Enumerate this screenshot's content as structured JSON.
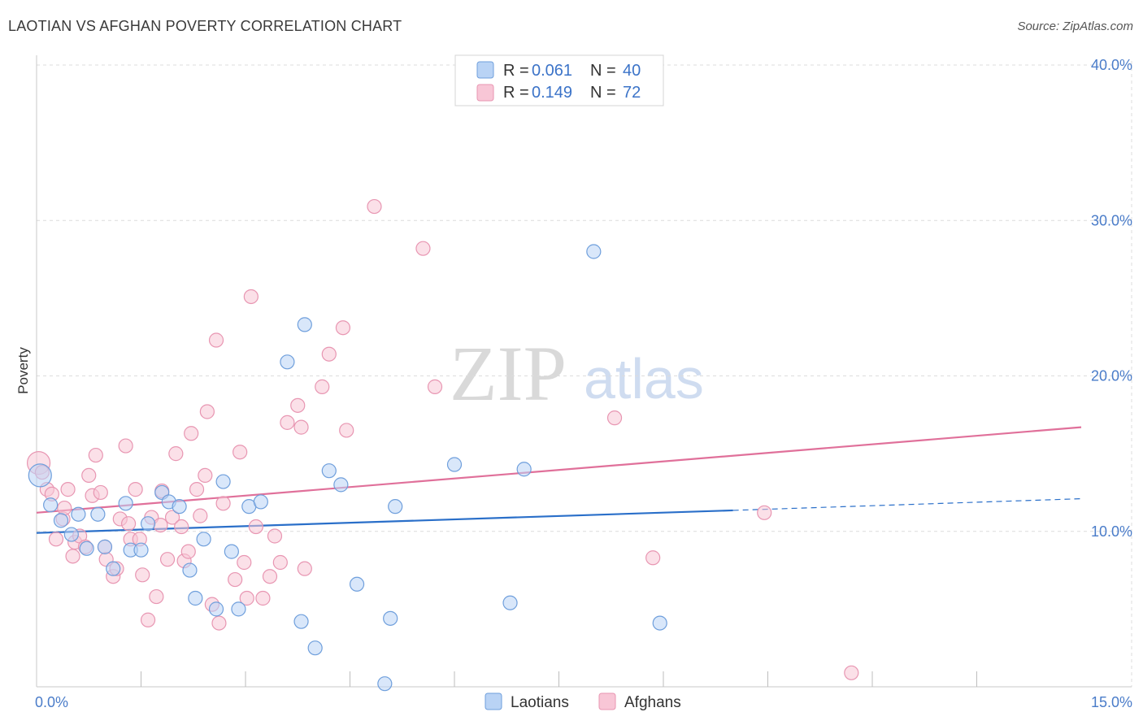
{
  "title": "LAOTIAN VS AFGHAN POVERTY CORRELATION CHART",
  "source": "Source: ZipAtlas.com",
  "watermark": {
    "zip": "ZIP",
    "atlas": "atlas"
  },
  "colors": {
    "laotian_fill": "#b9d3f5",
    "laotian_stroke": "#6f9fdc",
    "laotian_line": "#2a6fc9",
    "afghan_fill": "#f8c6d6",
    "afghan_stroke": "#e896b2",
    "afghan_line": "#e0709a",
    "tick_label": "#4a7cc9",
    "grid": "#dcdcdc"
  },
  "legend": {
    "rows": [
      {
        "r_label": "R =",
        "r_value": "0.061",
        "n_label": "N =",
        "n_value": "40"
      },
      {
        "r_label": "R =",
        "r_value": "0.149",
        "n_label": "N =",
        "n_value": "72"
      }
    ]
  },
  "bottom_legend": [
    "Laotians",
    "Afghans"
  ],
  "chart_data": {
    "type": "scatter",
    "title": "LAOTIAN VS AFGHAN POVERTY CORRELATION CHART",
    "xlabel": "",
    "ylabel": "Poverty",
    "xlim": [
      0,
      15
    ],
    "ylim": [
      0,
      40
    ],
    "x_tick_labels": [
      {
        "value": 0,
        "label": "0.0%"
      },
      {
        "value": 15,
        "label": "15.0%"
      }
    ],
    "y_tick_labels": [
      {
        "value": 10,
        "label": "10.0%"
      },
      {
        "value": 20,
        "label": "20.0%"
      },
      {
        "value": 30,
        "label": "30.0%"
      },
      {
        "value": 40,
        "label": "40.0%"
      }
    ],
    "x_minor_ticks": [
      1.5,
      3,
      4.5,
      6,
      7.5,
      9,
      10.5,
      12,
      13.5
    ],
    "series": [
      {
        "name": "Laotians",
        "r": 0.061,
        "n": 40,
        "trend": {
          "x": [
            0,
            10
          ],
          "y": [
            9.9,
            11.35
          ]
        },
        "trend_dashed": {
          "x": [
            10,
            15
          ],
          "y": [
            11.35,
            12.1
          ]
        },
        "points": [
          {
            "x": 0.05,
            "y": 13.6,
            "big": true
          },
          {
            "x": 0.2,
            "y": 11.7
          },
          {
            "x": 0.35,
            "y": 10.7
          },
          {
            "x": 0.5,
            "y": 9.8
          },
          {
            "x": 0.6,
            "y": 11.1
          },
          {
            "x": 0.72,
            "y": 8.9
          },
          {
            "x": 0.88,
            "y": 11.1
          },
          {
            "x": 0.98,
            "y": 9.0
          },
          {
            "x": 1.1,
            "y": 7.6
          },
          {
            "x": 1.28,
            "y": 11.8
          },
          {
            "x": 1.35,
            "y": 8.8
          },
          {
            "x": 1.5,
            "y": 8.8
          },
          {
            "x": 1.6,
            "y": 10.5
          },
          {
            "x": 1.8,
            "y": 12.5
          },
          {
            "x": 1.9,
            "y": 11.9
          },
          {
            "x": 2.05,
            "y": 11.6
          },
          {
            "x": 2.2,
            "y": 7.5
          },
          {
            "x": 2.28,
            "y": 5.7
          },
          {
            "x": 2.4,
            "y": 9.5
          },
          {
            "x": 2.58,
            "y": 5.0
          },
          {
            "x": 2.68,
            "y": 13.2
          },
          {
            "x": 2.8,
            "y": 8.7
          },
          {
            "x": 2.9,
            "y": 5.0
          },
          {
            "x": 3.05,
            "y": 11.6
          },
          {
            "x": 3.22,
            "y": 11.9
          },
          {
            "x": 3.6,
            "y": 20.9
          },
          {
            "x": 3.8,
            "y": 4.2
          },
          {
            "x": 3.85,
            "y": 23.3
          },
          {
            "x": 4.0,
            "y": 2.5
          },
          {
            "x": 4.2,
            "y": 13.9
          },
          {
            "x": 4.37,
            "y": 13.0
          },
          {
            "x": 4.6,
            "y": 6.6
          },
          {
            "x": 5.0,
            "y": 0.2
          },
          {
            "x": 5.08,
            "y": 4.4
          },
          {
            "x": 5.15,
            "y": 11.6
          },
          {
            "x": 6.0,
            "y": 14.3
          },
          {
            "x": 6.8,
            "y": 5.4
          },
          {
            "x": 7.0,
            "y": 14.0
          },
          {
            "x": 8.0,
            "y": 28.0
          },
          {
            "x": 8.95,
            "y": 4.1
          }
        ]
      },
      {
        "name": "Afghans",
        "r": 0.149,
        "n": 72,
        "trend": {
          "x": [
            0,
            15
          ],
          "y": [
            11.2,
            16.7
          ]
        },
        "points": [
          {
            "x": 0.03,
            "y": 14.4,
            "big": true
          },
          {
            "x": 0.08,
            "y": 13.8
          },
          {
            "x": 0.15,
            "y": 12.7
          },
          {
            "x": 0.22,
            "y": 12.4
          },
          {
            "x": 0.28,
            "y": 9.5
          },
          {
            "x": 0.38,
            "y": 10.8
          },
          {
            "x": 0.4,
            "y": 11.5
          },
          {
            "x": 0.45,
            "y": 12.7
          },
          {
            "x": 0.52,
            "y": 8.4
          },
          {
            "x": 0.55,
            "y": 9.3
          },
          {
            "x": 0.62,
            "y": 9.7
          },
          {
            "x": 0.7,
            "y": 9.0
          },
          {
            "x": 0.75,
            "y": 13.6
          },
          {
            "x": 0.8,
            "y": 12.3
          },
          {
            "x": 0.85,
            "y": 14.9
          },
          {
            "x": 0.92,
            "y": 12.5
          },
          {
            "x": 0.98,
            "y": 9.0
          },
          {
            "x": 1.0,
            "y": 8.2
          },
          {
            "x": 1.1,
            "y": 7.1
          },
          {
            "x": 1.15,
            "y": 7.6
          },
          {
            "x": 1.2,
            "y": 10.8
          },
          {
            "x": 1.28,
            "y": 15.5
          },
          {
            "x": 1.32,
            "y": 10.5
          },
          {
            "x": 1.35,
            "y": 9.5
          },
          {
            "x": 1.42,
            "y": 12.7
          },
          {
            "x": 1.48,
            "y": 9.5
          },
          {
            "x": 1.52,
            "y": 7.2
          },
          {
            "x": 1.6,
            "y": 4.3
          },
          {
            "x": 1.65,
            "y": 10.9
          },
          {
            "x": 1.72,
            "y": 5.8
          },
          {
            "x": 1.78,
            "y": 10.4
          },
          {
            "x": 1.8,
            "y": 12.6
          },
          {
            "x": 1.88,
            "y": 8.2
          },
          {
            "x": 1.95,
            "y": 10.9
          },
          {
            "x": 2.0,
            "y": 15.0
          },
          {
            "x": 2.08,
            "y": 10.3
          },
          {
            "x": 2.12,
            "y": 8.1
          },
          {
            "x": 2.18,
            "y": 8.7
          },
          {
            "x": 2.22,
            "y": 16.3
          },
          {
            "x": 2.3,
            "y": 12.7
          },
          {
            "x": 2.35,
            "y": 11.0
          },
          {
            "x": 2.42,
            "y": 13.6
          },
          {
            "x": 2.45,
            "y": 17.7
          },
          {
            "x": 2.52,
            "y": 5.3
          },
          {
            "x": 2.58,
            "y": 22.3
          },
          {
            "x": 2.62,
            "y": 4.1
          },
          {
            "x": 2.68,
            "y": 11.8
          },
          {
            "x": 2.85,
            "y": 6.9
          },
          {
            "x": 2.92,
            "y": 15.1
          },
          {
            "x": 2.98,
            "y": 8.0
          },
          {
            "x": 3.02,
            "y": 5.7
          },
          {
            "x": 3.08,
            "y": 25.1
          },
          {
            "x": 3.15,
            "y": 10.3
          },
          {
            "x": 3.25,
            "y": 5.7
          },
          {
            "x": 3.35,
            "y": 7.1
          },
          {
            "x": 3.42,
            "y": 9.7
          },
          {
            "x": 3.5,
            "y": 8.0
          },
          {
            "x": 3.6,
            "y": 17.0
          },
          {
            "x": 3.75,
            "y": 18.1
          },
          {
            "x": 3.8,
            "y": 16.7
          },
          {
            "x": 3.85,
            "y": 7.6
          },
          {
            "x": 4.1,
            "y": 19.3
          },
          {
            "x": 4.2,
            "y": 21.4
          },
          {
            "x": 4.4,
            "y": 23.1
          },
          {
            "x": 4.45,
            "y": 16.5
          },
          {
            "x": 4.85,
            "y": 30.9
          },
          {
            "x": 5.55,
            "y": 28.2
          },
          {
            "x": 5.72,
            "y": 19.3
          },
          {
            "x": 8.3,
            "y": 17.3
          },
          {
            "x": 8.85,
            "y": 8.3
          },
          {
            "x": 10.45,
            "y": 11.2
          },
          {
            "x": 11.7,
            "y": 0.9
          }
        ]
      }
    ]
  }
}
